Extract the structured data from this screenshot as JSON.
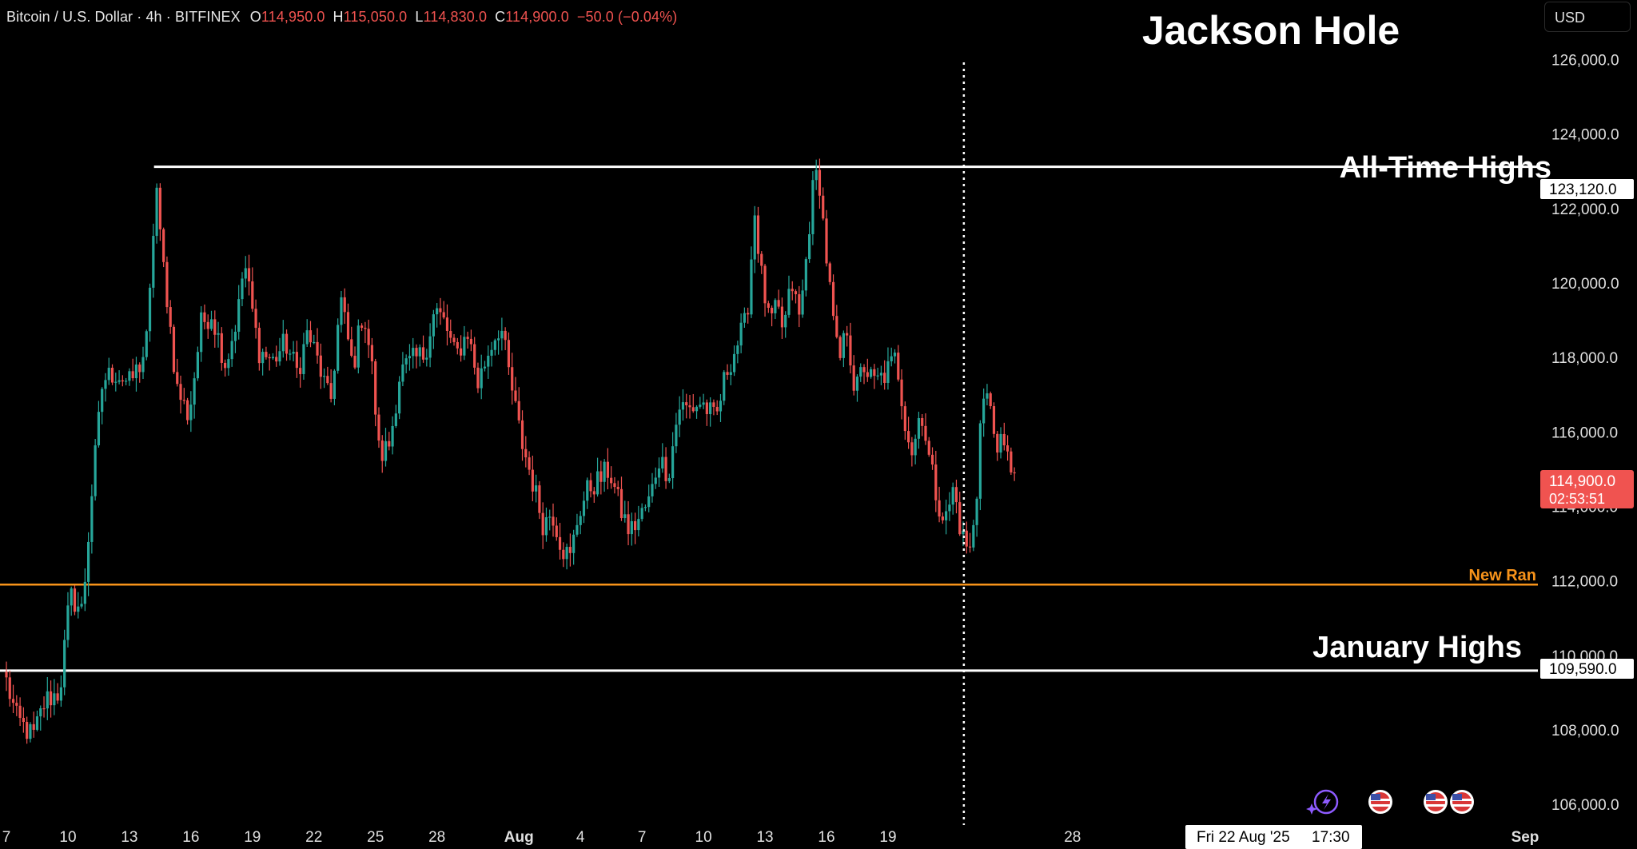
{
  "header": {
    "symbol": "Bitcoin / U.S. Dollar · 4h · BITFINEX",
    "open_label": "O",
    "open": "114,950.0",
    "high_label": "H",
    "high": "115,050.0",
    "low_label": "L",
    "low": "114,830.0",
    "close_label": "C",
    "close": "114,900.0",
    "change": "−50.0 (−0.04%)"
  },
  "currency": "USD",
  "colors": {
    "up": "#26a69a",
    "down": "#ef5350",
    "background": "#000000",
    "orange_line": "#f7931a",
    "white_line": "#ffffff",
    "price_tag": "#f05350"
  },
  "annotations": {
    "event_title": "Jackson Hole",
    "ath_label": "All-Time Highs",
    "new_range_label": "New Ran",
    "jan_highs_label": "January Highs"
  },
  "price_tags": {
    "ath_value": "123,120.0",
    "jan_value": "109,590.0",
    "last_price": "114,900.0",
    "countdown": "02:53:51"
  },
  "crosshair_label": {
    "date": "Fri 22 Aug '25",
    "time": "17:30"
  },
  "chart_data": {
    "type": "candlestick",
    "timeframe": "4h",
    "x_tick_labels": [
      "7",
      "10",
      "13",
      "16",
      "19",
      "22",
      "25",
      "28",
      "Aug",
      "4",
      "7",
      "10",
      "13",
      "16",
      "19",
      "28",
      "Sep"
    ],
    "y_tick_labels": [
      "126,000.0",
      "124,000.0",
      "122,000.0",
      "120,000.0",
      "118,000.0",
      "116,000.0",
      "114,000.0",
      "112,000.0",
      "110,000.0",
      "108,000.0",
      "106,000.0"
    ],
    "y_ticks": [
      126000,
      124000,
      122000,
      120000,
      118000,
      116000,
      114000,
      112000,
      110000,
      108000,
      106000
    ],
    "ylim": [
      104800,
      127600
    ],
    "x_axis_days": [
      6.9,
      32.6
    ],
    "x_ticks_days": [
      7,
      10,
      13,
      16,
      19,
      22,
      25,
      28,
      32,
      35,
      38,
      41,
      44,
      47,
      50,
      59,
      63
    ],
    "horizontal_levels": [
      {
        "name": "All-Time Highs",
        "price": 123120,
        "color": "white",
        "start_day": 14.2
      },
      {
        "name": "New Range",
        "price": 111900,
        "color": "orange",
        "start_day": 6.9
      },
      {
        "name": "January Highs",
        "price": 109590,
        "color": "white",
        "start_day": 6.9
      }
    ],
    "event_line_day": 53.7,
    "anchors": [
      [
        7.0,
        109300
      ],
      [
        7.5,
        108300
      ],
      [
        8.3,
        107800
      ],
      [
        8.9,
        108800
      ],
      [
        9.6,
        109000
      ],
      [
        10.1,
        111600
      ],
      [
        10.7,
        111200
      ],
      [
        10.9,
        112500
      ],
      [
        11.2,
        114600
      ],
      [
        11.7,
        117400
      ],
      [
        12.3,
        117600
      ],
      [
        13.0,
        117300
      ],
      [
        13.6,
        117900
      ],
      [
        13.9,
        118600
      ],
      [
        14.3,
        122800
      ],
      [
        14.5,
        121200
      ],
      [
        14.8,
        119800
      ],
      [
        15.3,
        117200
      ],
      [
        15.9,
        116400
      ],
      [
        16.5,
        118900
      ],
      [
        17.0,
        119200
      ],
      [
        17.7,
        117800
      ],
      [
        18.3,
        119200
      ],
      [
        18.6,
        120600
      ],
      [
        19.3,
        118200
      ],
      [
        20.0,
        117900
      ],
      [
        20.6,
        118400
      ],
      [
        21.2,
        117600
      ],
      [
        21.7,
        118700
      ],
      [
        22.3,
        117700
      ],
      [
        22.8,
        116700
      ],
      [
        23.3,
        119600
      ],
      [
        23.9,
        117700
      ],
      [
        24.4,
        119300
      ],
      [
        24.8,
        117900
      ],
      [
        25.2,
        115300
      ],
      [
        25.7,
        115700
      ],
      [
        26.2,
        117600
      ],
      [
        26.8,
        117900
      ],
      [
        27.4,
        118100
      ],
      [
        27.9,
        119300
      ],
      [
        28.4,
        118900
      ],
      [
        28.9,
        118000
      ],
      [
        29.5,
        118700
      ],
      [
        30.0,
        117300
      ],
      [
        30.6,
        118300
      ],
      [
        31.1,
        118900
      ],
      [
        31.5,
        117600
      ],
      [
        32.1,
        115800
      ],
      [
        32.6,
        114800
      ],
      [
        33.2,
        113500
      ],
      [
        33.6,
        113900
      ],
      [
        34.1,
        112900
      ],
      [
        34.5,
        112600
      ],
      [
        34.9,
        113800
      ],
      [
        35.4,
        114500
      ],
      [
        35.9,
        114700
      ],
      [
        36.4,
        115000
      ],
      [
        36.9,
        114000
      ],
      [
        37.4,
        113300
      ],
      [
        37.9,
        113700
      ],
      [
        38.4,
        114200
      ],
      [
        38.8,
        115300
      ],
      [
        39.3,
        114900
      ],
      [
        39.8,
        116700
      ],
      [
        40.3,
        116600
      ],
      [
        40.9,
        116800
      ],
      [
        41.6,
        116300
      ],
      [
        42.1,
        117600
      ],
      [
        42.6,
        118300
      ],
      [
        43.1,
        119000
      ],
      [
        43.5,
        121900
      ],
      [
        43.8,
        120300
      ],
      [
        44.2,
        118900
      ],
      [
        44.6,
        119300
      ],
      [
        44.9,
        118700
      ],
      [
        45.3,
        120000
      ],
      [
        45.7,
        119000
      ],
      [
        46.0,
        120600
      ],
      [
        46.3,
        122400
      ],
      [
        46.6,
        123100
      ],
      [
        46.9,
        121200
      ],
      [
        47.3,
        119100
      ],
      [
        47.6,
        117800
      ],
      [
        48.0,
        118800
      ],
      [
        48.4,
        117000
      ],
      [
        48.8,
        117800
      ],
      [
        49.3,
        117300
      ],
      [
        49.8,
        117500
      ],
      [
        50.4,
        118000
      ],
      [
        50.8,
        116400
      ],
      [
        51.2,
        115400
      ],
      [
        51.6,
        116700
      ],
      [
        52.0,
        115300
      ],
      [
        52.4,
        114200
      ],
      [
        52.8,
        113600
      ],
      [
        53.2,
        114500
      ],
      [
        53.6,
        113200
      ],
      [
        54.0,
        112800
      ],
      [
        54.3,
        113900
      ],
      [
        54.5,
        116500
      ],
      [
        54.8,
        117100
      ],
      [
        55.2,
        115900
      ],
      [
        55.6,
        115500
      ],
      [
        56.0,
        115100
      ],
      [
        56.3,
        114900
      ]
    ]
  }
}
